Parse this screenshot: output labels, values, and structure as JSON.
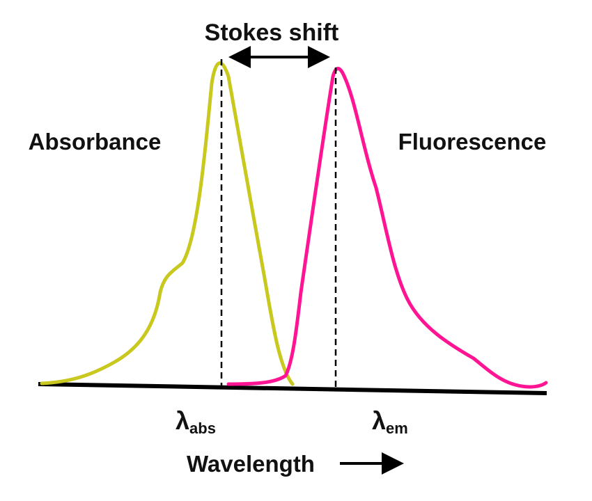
{
  "diagram": {
    "title": "Stokes shift",
    "absorbance_label": "Absorbance",
    "fluorescence_label": "Fluorescence",
    "lambda_abs": {
      "symbol": "λ",
      "subscript": "abs"
    },
    "lambda_em": {
      "symbol": "λ",
      "subscript": "em"
    },
    "axis_label": "Wavelength",
    "colors": {
      "absorbance_curve": "#c8c81e",
      "fluorescence_curve": "#ff1493",
      "axis": "#000000",
      "text": "#111111"
    }
  }
}
